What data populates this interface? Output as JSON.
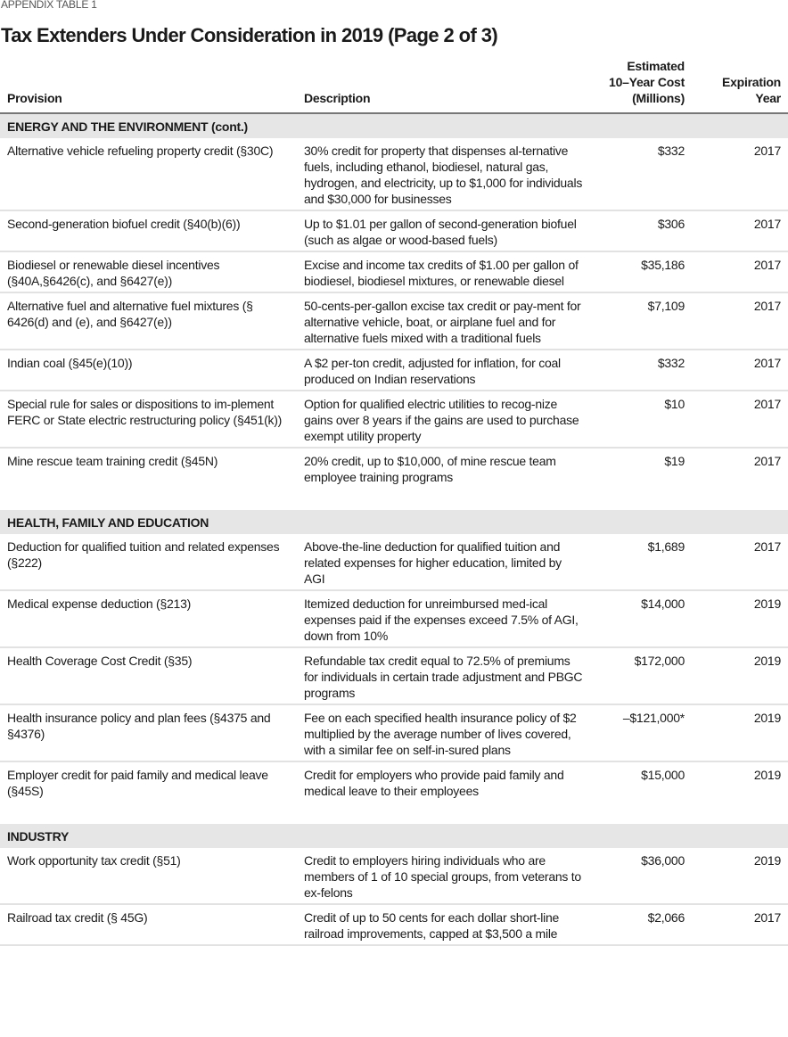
{
  "kicker": "APPENDIX TABLE 1",
  "title": "Tax Extenders Under Consideration in 2019 (Page 2 of 3)",
  "headers": {
    "provision": "Provision",
    "description": "Description",
    "cost": "Estimated 10–Year Cost (Millions)",
    "year": "Expiration Year"
  },
  "sections": [
    {
      "title": "ENERGY AND THE ENVIRONMENT (cont.)",
      "rows": [
        {
          "provision": "Alternative vehicle refueling property credit (§30C)",
          "description": "30% credit for property that dispenses al-ternative fuels, including ethanol, biodiesel, natural gas, hydrogen, and electricity, up to $1,000 for individuals and $30,000 for businesses",
          "cost": "$332",
          "year": "2017"
        },
        {
          "provision": "Second-generation biofuel credit (§40(b)(6))",
          "description": "Up to $1.01 per gallon of second-generation biofuel (such as algae or wood-based fuels)",
          "cost": "$306",
          "year": "2017"
        },
        {
          "provision": "Biodiesel or renewable diesel incentives (§40A,§6426(c), and §6427(e))",
          "description": "Excise and income tax credits of $1.00 per gallon of biodiesel, biodiesel mixtures, or renewable diesel",
          "cost": "$35,186",
          "year": "2017"
        },
        {
          "provision": "Alternative fuel and alternative fuel mixtures (§  6426(d) and (e), and §6427(e))",
          "description": "50-cents-per-gallon excise tax credit or pay-ment for alternative vehicle, boat, or airplane fuel and for alternative fuels mixed with a traditional fuels",
          "cost": "$7,109",
          "year": "2017"
        },
        {
          "provision": "Indian coal (§45(e)(10))",
          "description": "A $2 per-ton credit, adjusted for inflation, for coal produced on Indian reservations",
          "cost": "$332",
          "year": "2017"
        },
        {
          "provision": "Special rule for sales or dispositions to im-plement FERC or State electric restructuring policy (§451(k))",
          "description": "Option for qualified electric utilities to recog-nize gains over 8 years if the gains are used to purchase exempt utility property",
          "cost": "$10",
          "year": "2017"
        },
        {
          "provision": "Mine rescue team training credit (§45N)",
          "description": "20% credit, up to $10,000, of mine rescue team employee training programs",
          "cost": "$19",
          "year": "2017"
        }
      ]
    },
    {
      "title": "HEALTH, FAMILY AND EDUCATION",
      "rows": [
        {
          "provision": "Deduction for qualified tuition and related expenses (§222)",
          "description": "Above-the-line deduction for qualified tuition and related expenses for higher education, limited by AGI",
          "cost": "$1,689",
          "year": "2017"
        },
        {
          "provision": "Medical expense deduction (§213)",
          "description": "Itemized deduction for unreimbursed med-ical expenses paid if the expenses exceed 7.5% of AGI, down from 10%",
          "cost": "$14,000",
          "year": "2019"
        },
        {
          "provision": "Health Coverage Cost Credit (§35)",
          "description": "Refundable tax credit equal to 72.5% of premiums for individuals in certain trade adjustment and PBGC programs",
          "cost": "$172,000",
          "year": "2019"
        },
        {
          "provision": "Health insurance policy and plan fees (§4375 and §4376)",
          "description": "Fee on each specified health insurance policy of $2 multiplied by the average number of lives covered, with a similar fee on self-in-sured plans",
          "cost": "–$121,000*",
          "year": "2019"
        },
        {
          "provision": "Employer credit for paid family and medical leave (§45S)",
          "description": "Credit for employers who provide paid family and medical leave to their employees",
          "cost": "$15,000",
          "year": "2019"
        }
      ]
    },
    {
      "title": "INDUSTRY",
      "rows": [
        {
          "provision": "Work opportunity tax credit (§51)",
          "description": "Credit to employers hiring individuals who are members of 1 of 10 special groups, from veterans to ex-felons",
          "cost": "$36,000",
          "year": "2019"
        },
        {
          "provision": "Railroad tax credit (§ 45G)",
          "description": "Credit of up to 50 cents for each dollar short-line railroad improvements, capped at $3,500 a mile",
          "cost": "$2,066",
          "year": "2017"
        }
      ]
    }
  ]
}
